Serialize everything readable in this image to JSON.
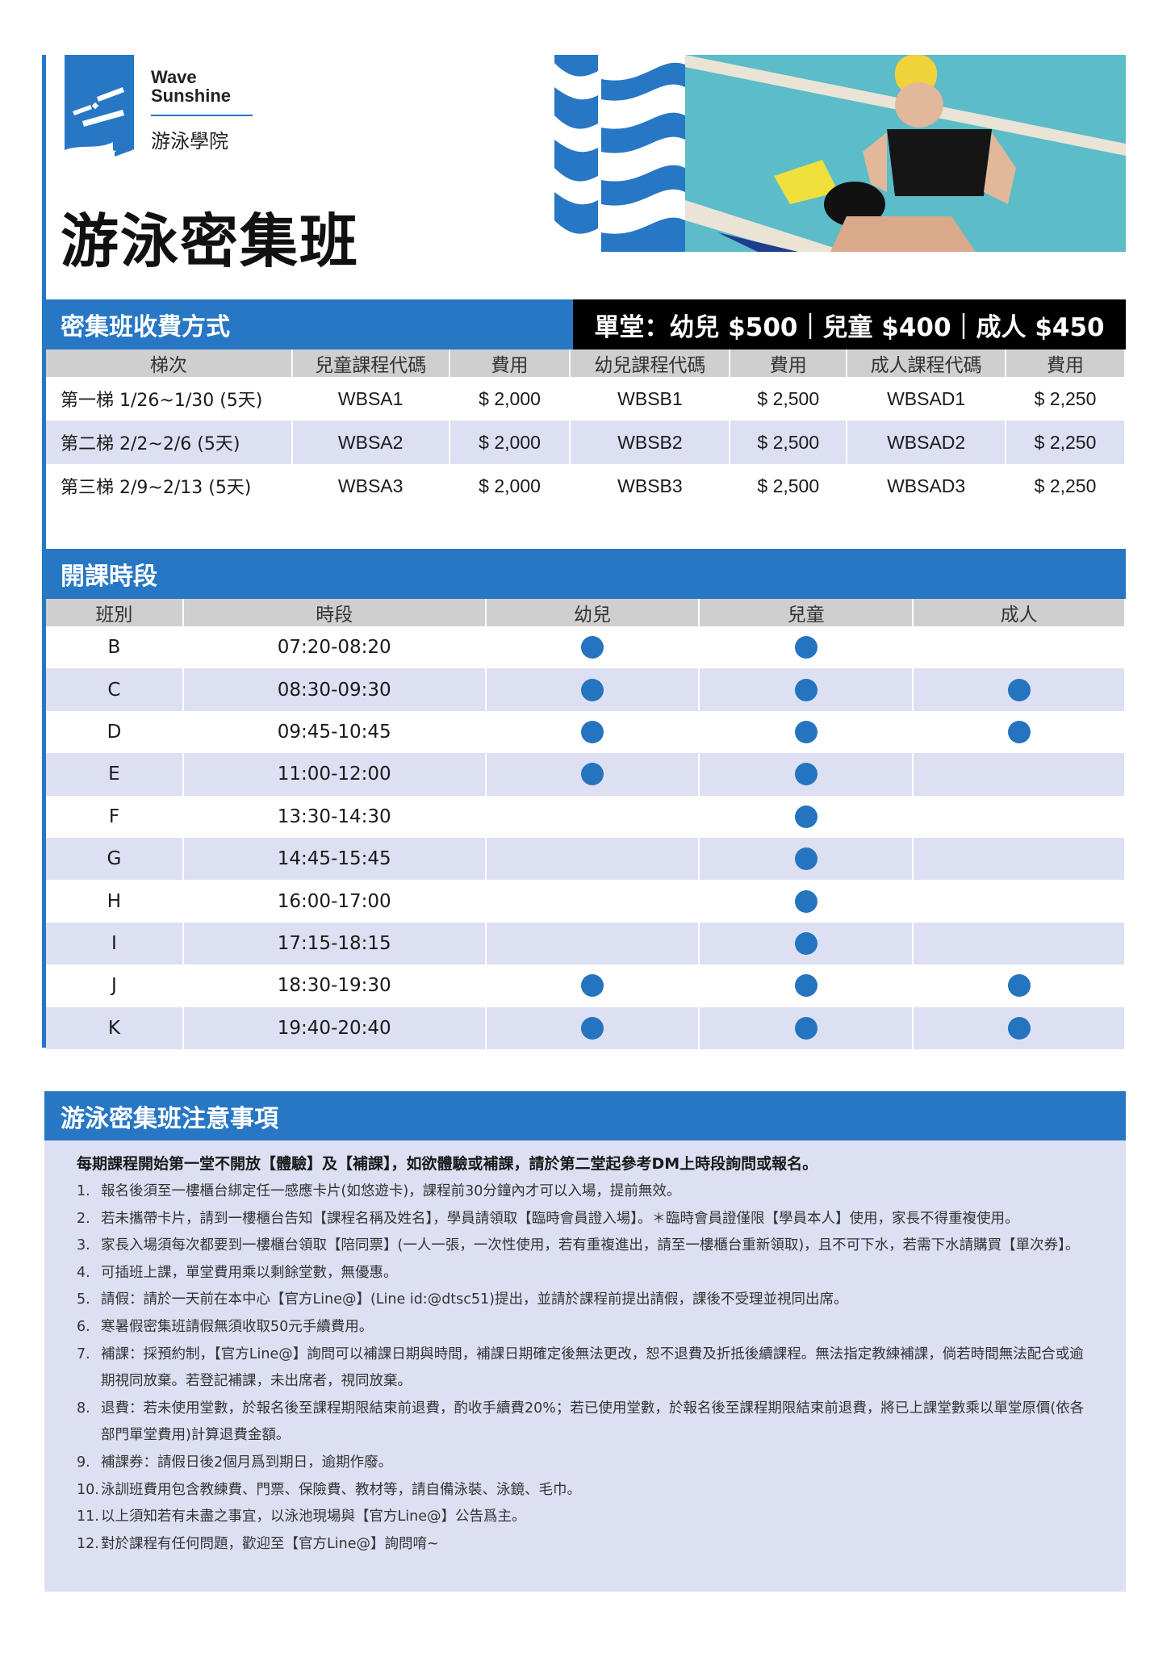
{
  "brand": {
    "name_line1": "Wave",
    "name_line2": "Sunshine",
    "name_cn": "游泳學院",
    "color": "#2777c4"
  },
  "title": "游泳密集班",
  "pricing": {
    "header": "密集班收費方式",
    "single_price": "單堂：幼兒 $500｜兒童 $400｜成人 $450",
    "columns": [
      "梯次",
      "兒童課程代碼",
      "費用",
      "幼兒課程代碼",
      "費用",
      "成人課程代碼",
      "費用"
    ],
    "rows": [
      [
        "第一梯 1/26~1/30 (5天)",
        "WBSA1",
        "$ 2,000",
        "WBSB1",
        "$ 2,500",
        "WBSAD1",
        "$ 2,250"
      ],
      [
        "第二梯 2/2~2/6 (5天)",
        "WBSA2",
        "$ 2,000",
        "WBSB2",
        "$ 2,500",
        "WBSAD2",
        "$ 2,250"
      ],
      [
        "第三梯 2/9~2/13 (5天)",
        "WBSA3",
        "$ 2,000",
        "WBSB3",
        "$ 2,500",
        "WBSAD3",
        "$ 2,250"
      ]
    ]
  },
  "schedule": {
    "header": "開課時段",
    "columns": [
      "班別",
      "時段",
      "幼兒",
      "兒童",
      "成人"
    ],
    "rows": [
      {
        "class": "B",
        "time": "07:20-08:20",
        "infant": true,
        "child": true,
        "adult": false
      },
      {
        "class": "C",
        "time": "08:30-09:30",
        "infant": true,
        "child": true,
        "adult": true
      },
      {
        "class": "D",
        "time": "09:45-10:45",
        "infant": true,
        "child": true,
        "adult": true
      },
      {
        "class": "E",
        "time": "11:00-12:00",
        "infant": true,
        "child": true,
        "adult": false
      },
      {
        "class": "F",
        "time": "13:30-14:30",
        "infant": false,
        "child": true,
        "adult": false
      },
      {
        "class": "G",
        "time": "14:45-15:45",
        "infant": false,
        "child": true,
        "adult": false
      },
      {
        "class": "H",
        "time": "16:00-17:00",
        "infant": false,
        "child": true,
        "adult": false
      },
      {
        "class": "I",
        "time": "17:15-18:15",
        "infant": false,
        "child": true,
        "adult": false
      },
      {
        "class": "J",
        "time": "18:30-19:30",
        "infant": true,
        "child": true,
        "adult": true
      },
      {
        "class": "K",
        "time": "19:40-20:40",
        "infant": true,
        "child": true,
        "adult": true
      }
    ]
  },
  "notes": {
    "header": "游泳密集班注意事項",
    "lead": "每期課程開始第一堂不開放【體驗】及【補課】，如欲體驗或補課，請於第二堂起參考DM上時段詢問或報名。",
    "items": [
      {
        "n": "1.",
        "t": "報名後須至一樓櫃台綁定任一感應卡片(如悠遊卡)，課程前30分鐘內才可以入場，提前無效。"
      },
      {
        "n": "2.",
        "t": "若未攜帶卡片，請到一樓櫃台告知【課程名稱及姓名】，學員請領取【臨時會員證入場】。＊臨時會員證僅限【學員本人】使用，家長不得重複使用。"
      },
      {
        "n": "3.",
        "t": "家長入場須每次都要到一樓櫃台領取【陪同票】(一人一張，一次性使用，若有重複進出，請至一樓櫃台重新領取)，且不可下水，若需下水請購買【單次券】。"
      },
      {
        "n": "4.",
        "t": "可插班上課，單堂費用乘以剩餘堂數，無優惠。"
      },
      {
        "n": "5.",
        "t": "請假：請於一天前在本中心【官方Line@】(Line id:@dtsc51)提出，並請於課程前提出請假，課後不受理並視同出席。"
      },
      {
        "n": "6.",
        "t": "寒暑假密集班請假無須收取50元手續費用。"
      },
      {
        "n": "7.",
        "t": "補課：採預約制，【官方Line@】詢問可以補課日期與時間，補課日期確定後無法更改，恕不退費及折抵後續課程。無法指定教練補課，倘若時間無法配合或逾期視同放棄。若登記補課，未出席者，視同放棄。"
      },
      {
        "n": "8.",
        "t": "退費：若未使用堂數，於報名後至課程期限結束前退費，酌收手續費20%；若已使用堂數，於報名後至課程期限結束前退費，將已上課堂數乘以單堂原價(依各部門單堂費用)計算退費金額。"
      },
      {
        "n": "9.",
        "t": "補課券：請假日後2個月爲到期日，逾期作廢。"
      },
      {
        "n": "10.",
        "t": "泳訓班費用包含教練費、門票、保險費、教材等，請自備泳裝、泳鏡、毛巾。"
      },
      {
        "n": "11.",
        "t": "以上須知若有未盡之事宜，以泳池現場與【官方Line@】公告爲主。"
      },
      {
        "n": "12.",
        "t": "對於課程有任何問題，歡迎至【官方Line@】詢問唷~"
      }
    ]
  },
  "colors": {
    "primary": "#2777c4",
    "dot": "#2474bf",
    "row_alt": "#dde0f3",
    "header_gray": "#cfcfcf",
    "black": "#000000"
  }
}
